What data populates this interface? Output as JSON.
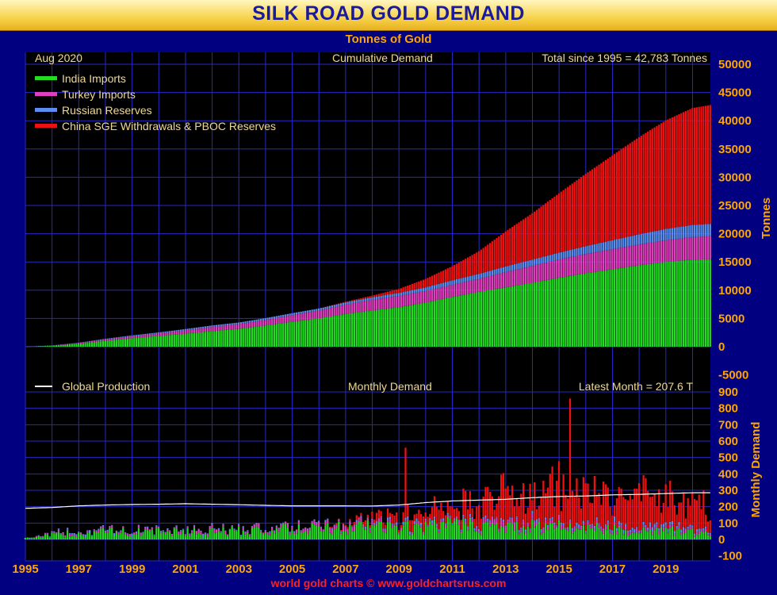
{
  "header": {
    "title": "SILK ROAD GOLD DEMAND",
    "subtitle": "Tonnes of Gold"
  },
  "top_panel": {
    "date_label": "Aug  2020",
    "panel_label": "Cumulative Demand",
    "total_label": "Total since 1995 = 42,783 Tonnes",
    "y_axis_title": "Tonnes"
  },
  "bottom_panel": {
    "legend_label": "Global Production",
    "panel_label": "Monthly Demand",
    "latest_label": "Latest Month = 207.6 T",
    "y_axis_title": "Monthly Demand"
  },
  "footer": "world gold charts © www.goldchartsrus.com",
  "colors": {
    "india": "#22dd22",
    "turkey": "#e040c0",
    "russia": "#5a8ef0",
    "china": "#ee1111",
    "production": "#ffffff",
    "grid": "#2828c8",
    "tick_label": "#ffa500",
    "text": "#f0d890"
  },
  "chart_data": [
    {
      "type": "bar",
      "stacked": true,
      "title": "Cumulative Demand",
      "ylabel": "Tonnes",
      "ylim": [
        -5000,
        50000
      ],
      "yticks": [
        -5000,
        0,
        5000,
        10000,
        15000,
        20000,
        25000,
        30000,
        35000,
        40000,
        45000,
        50000
      ],
      "x_range": [
        1995,
        2020.67
      ],
      "x": [
        1995.0,
        1996.0,
        1997.0,
        1998.0,
        1999.0,
        2000.0,
        2001.0,
        2002.0,
        2003.0,
        2004.0,
        2005.0,
        2006.0,
        2007.0,
        2008.0,
        2009.0,
        2010.0,
        2011.0,
        2012.0,
        2013.0,
        2014.0,
        2015.0,
        2016.0,
        2017.0,
        2018.0,
        2019.0,
        2020.0,
        2020.67
      ],
      "legend_position": "top-left",
      "series": [
        {
          "name": "India Imports",
          "values": [
            0,
            150,
            500,
            1050,
            1500,
            1900,
            2300,
            2750,
            3150,
            3750,
            4400,
            5000,
            5800,
            6400,
            7000,
            7800,
            8800,
            9700,
            10500,
            11300,
            12200,
            13000,
            13700,
            14400,
            15000,
            15400,
            15500
          ]
        },
        {
          "name": "Turkey Imports",
          "values": [
            0,
            50,
            150,
            250,
            350,
            450,
            600,
            750,
            850,
            1000,
            1200,
            1400,
            1650,
            1900,
            2000,
            2050,
            2150,
            2300,
            2700,
            3000,
            3250,
            3400,
            3550,
            3700,
            3850,
            4000,
            4050
          ]
        },
        {
          "name": "Russian Reserves",
          "values": [
            0,
            20,
            60,
            100,
            150,
            180,
            220,
            260,
            280,
            300,
            330,
            360,
            400,
            450,
            520,
            650,
            800,
            900,
            1000,
            1120,
            1200,
            1400,
            1600,
            1800,
            2000,
            2150,
            2200
          ]
        },
        {
          "name": "China SGE Withdrawals & PBOC Reserves",
          "values": [
            0,
            0,
            0,
            0,
            0,
            0,
            0,
            0,
            0,
            0,
            0,
            0,
            100,
            300,
            700,
            1500,
            2500,
            4000,
            6200,
            8200,
            10500,
            12800,
            15000,
            17200,
            19200,
            20700,
            21033
          ]
        }
      ]
    },
    {
      "type": "bar",
      "stacked": true,
      "title": "Monthly Demand",
      "ylabel": "Monthly Demand",
      "ylim": [
        -100,
        900
      ],
      "yticks": [
        -100,
        0,
        100,
        200,
        300,
        400,
        500,
        600,
        700,
        800,
        900
      ],
      "x_range": [
        1995,
        2020.67
      ],
      "x": [
        1995.0,
        1996.0,
        1997.0,
        1998.0,
        1999.0,
        2000.0,
        2001.0,
        2002.0,
        2003.0,
        2004.0,
        2005.0,
        2006.0,
        2007.0,
        2008.0,
        2009.0,
        2010.0,
        2011.0,
        2012.0,
        2013.0,
        2014.0,
        2015.0,
        2016.0,
        2017.0,
        2018.0,
        2019.0,
        2020.0,
        2020.67
      ],
      "series": [
        {
          "name": "India Imports",
          "values": [
            10,
            25,
            40,
            45,
            45,
            45,
            45,
            45,
            50,
            55,
            60,
            65,
            70,
            75,
            70,
            70,
            90,
            80,
            70,
            75,
            80,
            70,
            60,
            55,
            55,
            40,
            30
          ]
        },
        {
          "name": "Turkey Imports",
          "values": [
            0,
            8,
            10,
            10,
            10,
            10,
            12,
            15,
            12,
            15,
            18,
            20,
            22,
            22,
            10,
            10,
            12,
            15,
            30,
            25,
            20,
            15,
            15,
            15,
            15,
            15,
            10
          ]
        },
        {
          "name": "Russian Reserves",
          "values": [
            0,
            5,
            5,
            5,
            5,
            5,
            5,
            5,
            5,
            5,
            5,
            5,
            5,
            7,
            10,
            12,
            12,
            10,
            10,
            12,
            12,
            15,
            18,
            20,
            16,
            12,
            8
          ]
        },
        {
          "name": "China SGE Withdrawals & PBOC Reserves",
          "values": [
            0,
            0,
            0,
            0,
            0,
            0,
            0,
            0,
            0,
            0,
            0,
            0,
            10,
            30,
            40,
            70,
            90,
            120,
            180,
            170,
            200,
            190,
            175,
            180,
            170,
            130,
            160
          ]
        },
        {
          "name": "Global Production",
          "values": [
            190,
            195,
            205,
            210,
            213,
            215,
            218,
            215,
            212,
            208,
            205,
            205,
            205,
            204,
            210,
            225,
            235,
            240,
            245,
            255,
            262,
            265,
            272,
            275,
            280,
            285,
            285
          ]
        }
      ],
      "x_tick_labels": [
        "1995",
        "1997",
        "1999",
        "2001",
        "2003",
        "2005",
        "2007",
        "2009",
        "2011",
        "2013",
        "2015",
        "2017",
        "2019"
      ],
      "annotations": [
        {
          "x": 2009.25,
          "value": 560
        },
        {
          "x": 2015.42,
          "value": 860
        }
      ]
    }
  ]
}
